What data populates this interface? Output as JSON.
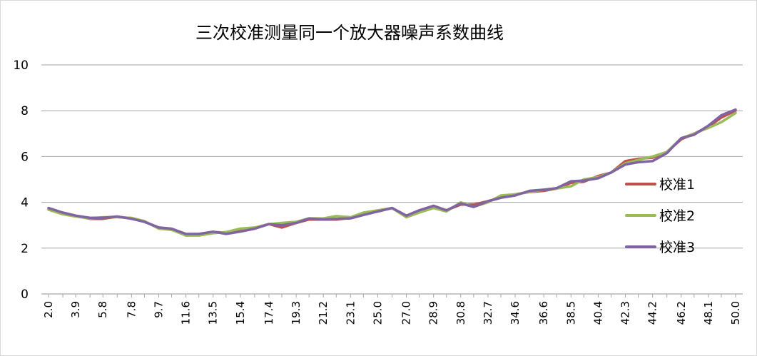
{
  "chart_data": {
    "type": "line",
    "title": "三次校准测量同一个放大器噪声系数曲线",
    "xlabel": "",
    "ylabel": "",
    "ylim": [
      0,
      10
    ],
    "yticks": [
      "0",
      "2",
      "4",
      "6",
      "8",
      "10"
    ],
    "grid": true,
    "legend_position": "right",
    "x": [
      2.0,
      3.0,
      3.9,
      4.9,
      5.8,
      6.8,
      7.8,
      8.7,
      9.7,
      10.6,
      11.6,
      12.5,
      13.5,
      14.4,
      15.4,
      16.4,
      17.4,
      18.3,
      19.3,
      20.2,
      21.2,
      22.1,
      23.1,
      24.0,
      25.0,
      26.0,
      27.0,
      27.9,
      28.9,
      29.8,
      30.8,
      31.7,
      32.7,
      33.6,
      34.6,
      35.6,
      36.6,
      37.5,
      38.5,
      39.4,
      40.4,
      41.3,
      42.3,
      43.2,
      44.2,
      45.2,
      46.2,
      47.1,
      48.1,
      49.0,
      50.0
    ],
    "x_tick_labels": [
      "2.0",
      "3.9",
      "5.8",
      "7.8",
      "9.7",
      "11.6",
      "13.5",
      "15.4",
      "17.4",
      "19.3",
      "21.2",
      "23.1",
      "25.0",
      "27.0",
      "28.9",
      "30.8",
      "32.7",
      "34.6",
      "36.6",
      "38.5",
      "40.4",
      "42.3",
      "44.2",
      "46.2",
      "48.1",
      "50.0"
    ],
    "series": [
      {
        "name": "校准1",
        "color": "#c0504d",
        "values": [
          3.7,
          3.5,
          3.4,
          3.28,
          3.28,
          3.37,
          3.3,
          3.15,
          2.9,
          2.8,
          2.6,
          2.6,
          2.7,
          2.68,
          2.75,
          2.85,
          3.05,
          2.9,
          3.1,
          3.25,
          3.25,
          3.25,
          3.32,
          3.5,
          3.6,
          3.75,
          3.4,
          3.6,
          3.8,
          3.65,
          3.9,
          3.9,
          4.05,
          4.2,
          4.35,
          4.45,
          4.5,
          4.6,
          4.85,
          4.9,
          5.15,
          5.3,
          5.8,
          5.9,
          5.95,
          6.2,
          6.75,
          7.0,
          7.3,
          7.7,
          8.0
        ]
      },
      {
        "name": "校准2",
        "color": "#9bbb59",
        "values": [
          3.68,
          3.48,
          3.38,
          3.3,
          3.35,
          3.35,
          3.32,
          3.18,
          2.85,
          2.8,
          2.55,
          2.55,
          2.65,
          2.7,
          2.85,
          2.9,
          3.05,
          3.1,
          3.15,
          3.3,
          3.3,
          3.4,
          3.35,
          3.55,
          3.65,
          3.75,
          3.35,
          3.55,
          3.75,
          3.6,
          4.0,
          3.8,
          4.0,
          4.3,
          4.35,
          4.45,
          4.55,
          4.6,
          4.7,
          5.0,
          5.1,
          5.3,
          5.7,
          5.85,
          6.0,
          6.2,
          6.8,
          7.0,
          7.25,
          7.5,
          7.9
        ]
      },
      {
        "name": "校准3",
        "color": "#8064a2",
        "values": [
          3.75,
          3.55,
          3.42,
          3.32,
          3.33,
          3.38,
          3.28,
          3.15,
          2.9,
          2.85,
          2.62,
          2.62,
          2.72,
          2.62,
          2.72,
          2.85,
          3.05,
          3.0,
          3.1,
          3.3,
          3.25,
          3.28,
          3.3,
          3.45,
          3.6,
          3.75,
          3.42,
          3.65,
          3.85,
          3.65,
          3.95,
          3.8,
          4.05,
          4.2,
          4.3,
          4.5,
          4.55,
          4.62,
          4.92,
          4.95,
          5.05,
          5.3,
          5.65,
          5.75,
          5.8,
          6.15,
          6.8,
          6.95,
          7.35,
          7.8,
          8.05
        ]
      }
    ]
  }
}
